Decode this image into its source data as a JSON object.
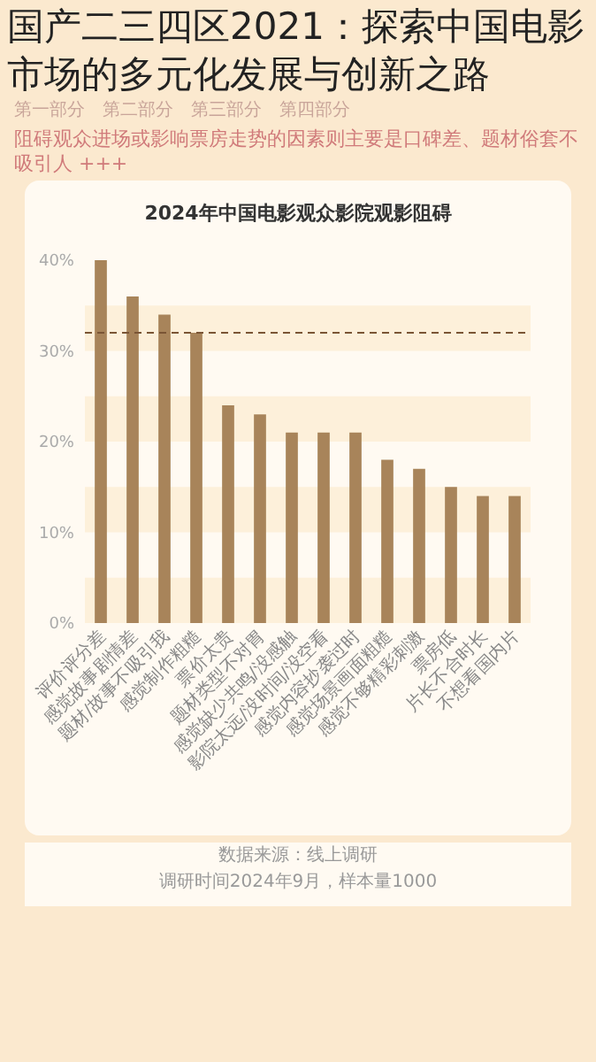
{
  "chart_data": {
    "type": "bar",
    "title": "国产二三四区2021：探索中国电影市场的多元化发展与创新之路",
    "subtitle": "2024年中国电影观众影院观影阻碍",
    "annotations": [
      "第一部分　第二部分　第三部分　第四部分",
      "阻碍观众进场或影响票房走势的因素则主要是口碑差、题材俗套不吸引人 +++",
      "数据来源：线上调研",
      "调研时间2024年9月，样本量1000"
    ],
    "categories": [
      "评价评分差",
      "感觉故事剧情差",
      "题材/故事不吸引我",
      "感觉制作粗糙",
      "票价太贵",
      "题材类型不对胃",
      "感觉缺少共鸣/没感触",
      "影院太远/没时间/没空看",
      "感觉内容抄袭过时",
      "感觉场景画面粗糙",
      "感觉不够精彩刺激",
      "票房低",
      "片长不合时长",
      "不想看国内片"
    ],
    "values": [
      40,
      36,
      34,
      32,
      24,
      23,
      21,
      21,
      21,
      18,
      17,
      15,
      14,
      14
    ],
    "color": "#a8845a",
    "ylim": [
      0,
      40
    ],
    "yticks": [
      {
        "value": 0,
        "label": "0%"
      },
      {
        "value": 10,
        "label": "10%"
      },
      {
        "value": 20,
        "label": "20%"
      },
      {
        "value": 30,
        "label": "30%"
      },
      {
        "value": 40,
        "label": "40%"
      }
    ],
    "ref_lines": [
      {
        "axis": "y",
        "value": 32,
        "color": "#7a5535",
        "line_style": "dashed"
      }
    ],
    "bands": [
      {
        "axis": "y",
        "from": 0,
        "to": 5,
        "color": "#fdf0da"
      },
      {
        "axis": "y",
        "from": 10,
        "to": 15,
        "color": "#fdf0da"
      },
      {
        "axis": "y",
        "from": 20,
        "to": 25,
        "color": "#fdf0da"
      },
      {
        "axis": "y",
        "from": 30,
        "to": 35,
        "color": "#fdf0da"
      }
    ]
  }
}
